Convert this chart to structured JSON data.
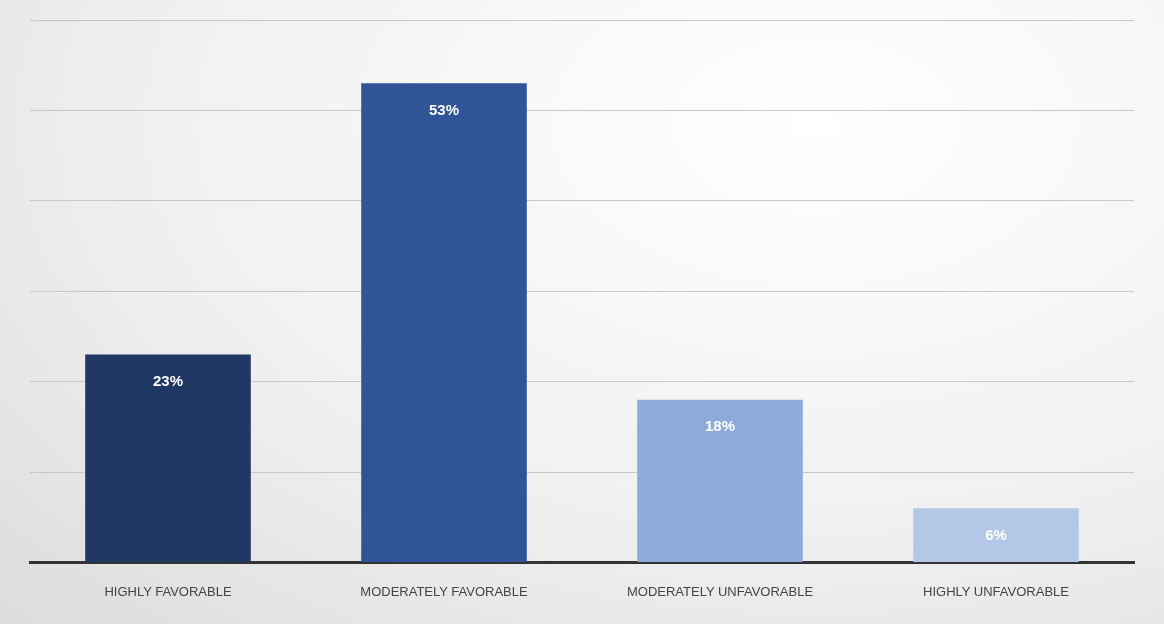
{
  "chart_data": {
    "type": "bar",
    "categories": [
      "HIGHLY FAVORABLE",
      "MODERATELY FAVORABLE",
      "MODERATELY UNFAVORABLE",
      "HIGHLY UNFAVORABLE"
    ],
    "values": [
      23,
      53,
      18,
      6
    ],
    "colors": [
      "#203864",
      "#2f5597",
      "#8eaadb",
      "#b4c7e7"
    ],
    "value_labels": [
      "23%",
      "53%",
      "18%",
      "6%"
    ],
    "ylim": [
      0,
      60
    ],
    "yticks": [
      {
        "value": 0,
        "label": null
      },
      {
        "value": 10,
        "label": null
      },
      {
        "value": 20,
        "label": null
      },
      {
        "value": 30,
        "label": null
      },
      {
        "value": 40,
        "label": null
      },
      {
        "value": 50,
        "label": null
      },
      {
        "value": 60,
        "label": null
      }
    ],
    "grid": "y",
    "tick_labels": "x",
    "legend": false
  }
}
